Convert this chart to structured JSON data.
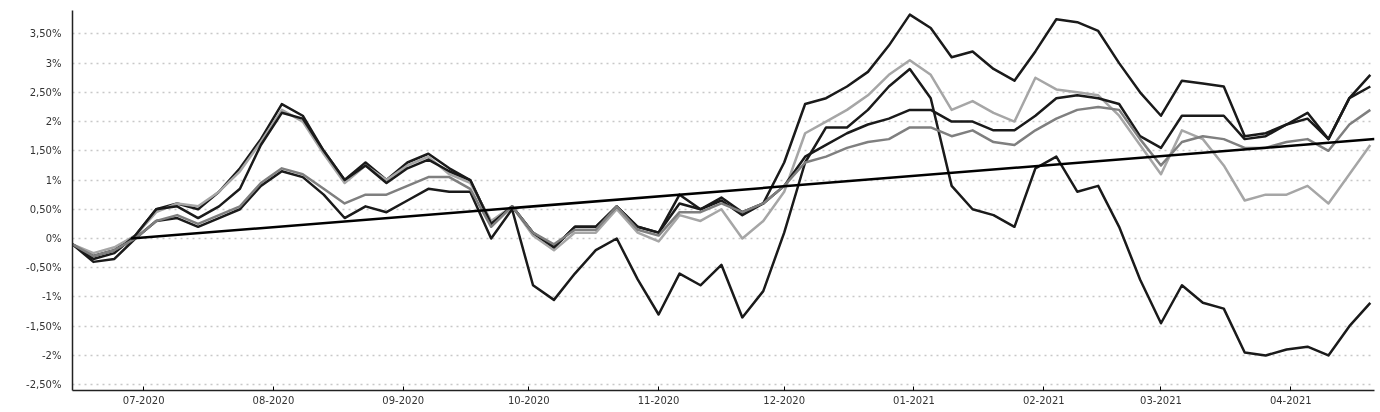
{
  "chart_data": {
    "type": "line",
    "x": [
      "2020-06-14",
      "2020-06-19",
      "2020-06-24",
      "2020-06-29",
      "2020-07-04",
      "2020-07-09",
      "2020-07-14",
      "2020-07-19",
      "2020-07-24",
      "2020-07-29",
      "2020-08-03",
      "2020-08-08",
      "2020-08-13",
      "2020-08-18",
      "2020-08-23",
      "2020-08-28",
      "2020-09-02",
      "2020-09-07",
      "2020-09-12",
      "2020-09-17",
      "2020-09-22",
      "2020-09-27",
      "2020-10-02",
      "2020-10-07",
      "2020-10-12",
      "2020-10-17",
      "2020-10-22",
      "2020-10-27",
      "2020-11-01",
      "2020-11-06",
      "2020-11-11",
      "2020-11-16",
      "2020-11-21",
      "2020-11-26",
      "2020-12-01",
      "2020-12-06",
      "2020-12-11",
      "2020-12-16",
      "2020-12-21",
      "2020-12-26",
      "2020-12-31",
      "2021-01-05",
      "2021-01-10",
      "2021-01-15",
      "2021-01-20",
      "2021-01-25",
      "2021-01-30",
      "2021-02-04",
      "2021-02-09",
      "2021-02-14",
      "2021-02-19",
      "2021-02-24",
      "2021-03-01",
      "2021-03-06",
      "2021-03-11",
      "2021-03-16",
      "2021-03-21",
      "2021-03-26",
      "2021-03-31",
      "2021-04-05",
      "2021-04-10",
      "2021-04-15",
      "2021-04-20"
    ],
    "series": [
      {
        "color": "#1a1a1a",
        "values": [
          -0.1,
          -0.3,
          -0.2,
          0.05,
          0.5,
          0.6,
          0.5,
          0.8,
          1.2,
          1.7,
          2.3,
          2.1,
          1.5,
          1.0,
          1.3,
          1.0,
          1.3,
          1.45,
          1.2,
          1.0,
          0.25,
          0.55,
          0.1,
          -0.15,
          0.2,
          0.2,
          0.55,
          0.2,
          0.1,
          0.75,
          0.5,
          0.7,
          0.45,
          0.6,
          1.3,
          2.3,
          2.4,
          2.6,
          2.85,
          3.3,
          3.83,
          3.6,
          3.1,
          3.2,
          2.9,
          2.7,
          3.2,
          3.75,
          3.7,
          3.55,
          3.0,
          2.5,
          2.1,
          2.7,
          2.65,
          2.6,
          1.75,
          1.8,
          1.95,
          2.15,
          1.7,
          2.4,
          2.8
        ]
      },
      {
        "color": "#1a1a1a",
        "values": [
          -0.1,
          -0.4,
          -0.35,
          0.0,
          0.3,
          0.35,
          0.2,
          0.35,
          0.5,
          0.9,
          1.15,
          1.05,
          0.75,
          0.35,
          0.55,
          0.45,
          0.65,
          0.85,
          0.8,
          0.8,
          0.0,
          0.5,
          -0.8,
          -1.05,
          -0.6,
          -0.2,
          0.0,
          -0.7,
          -1.3,
          -0.6,
          -0.8,
          -0.45,
          -1.35,
          -0.9,
          0.1,
          1.3,
          1.9,
          1.9,
          2.2,
          2.6,
          2.9,
          2.4,
          0.9,
          0.5,
          0.4,
          0.2,
          1.2,
          1.4,
          0.8,
          0.9,
          0.2,
          -0.7,
          -1.45,
          -0.8,
          -1.1,
          -1.2,
          -1.95,
          -2.0,
          -1.9,
          -1.85,
          -2.0,
          -1.5,
          -1.1
        ]
      },
      {
        "color": "#a6a6a6",
        "values": [
          -0.1,
          -0.25,
          -0.15,
          0.05,
          0.45,
          0.6,
          0.55,
          0.8,
          1.15,
          1.65,
          2.2,
          2.0,
          1.45,
          0.95,
          1.25,
          1.0,
          1.25,
          1.4,
          1.1,
          0.95,
          0.3,
          0.55,
          0.05,
          -0.2,
          0.1,
          0.1,
          0.5,
          0.1,
          -0.05,
          0.4,
          0.3,
          0.5,
          0.0,
          0.3,
          0.8,
          1.8,
          2.0,
          2.2,
          2.45,
          2.8,
          3.05,
          2.8,
          2.2,
          2.35,
          2.15,
          2.0,
          2.75,
          2.55,
          2.5,
          2.45,
          2.1,
          1.6,
          1.1,
          1.85,
          1.7,
          1.25,
          0.65,
          0.75,
          0.75,
          0.9,
          0.6,
          1.1,
          1.6
        ]
      },
      {
        "color": "#1a1a1a",
        "values": [
          -0.1,
          -0.35,
          -0.25,
          0.05,
          0.5,
          0.55,
          0.35,
          0.55,
          0.85,
          1.6,
          2.15,
          2.05,
          1.5,
          1.0,
          1.25,
          0.95,
          1.2,
          1.35,
          1.15,
          1.0,
          0.25,
          0.55,
          0.1,
          -0.15,
          0.2,
          0.2,
          0.55,
          0.2,
          0.1,
          0.6,
          0.5,
          0.65,
          0.4,
          0.6,
          0.9,
          1.4,
          1.6,
          1.8,
          1.95,
          2.05,
          2.2,
          2.2,
          2.0,
          2.0,
          1.85,
          1.85,
          2.1,
          2.4,
          2.45,
          2.4,
          2.3,
          1.75,
          1.55,
          2.1,
          2.1,
          2.1,
          1.7,
          1.75,
          1.95,
          2.05,
          1.7,
          2.4,
          2.6
        ]
      },
      {
        "color": "#7f7f7f",
        "values": [
          -0.1,
          -0.3,
          -0.2,
          0.0,
          0.3,
          0.4,
          0.25,
          0.4,
          0.55,
          0.95,
          1.2,
          1.1,
          0.85,
          0.6,
          0.75,
          0.75,
          0.9,
          1.05,
          1.05,
          0.85,
          0.2,
          0.55,
          0.1,
          -0.1,
          0.15,
          0.15,
          0.55,
          0.15,
          0.05,
          0.45,
          0.45,
          0.6,
          0.45,
          0.6,
          0.9,
          1.3,
          1.4,
          1.55,
          1.65,
          1.7,
          1.9,
          1.9,
          1.75,
          1.85,
          1.65,
          1.6,
          1.85,
          2.05,
          2.2,
          2.25,
          2.2,
          1.7,
          1.25,
          1.65,
          1.75,
          1.7,
          1.55,
          1.55,
          1.65,
          1.7,
          1.5,
          1.95,
          2.2
        ]
      },
      {
        "color": "#000000",
        "x": [
          "2020-06-28",
          "2021-04-21"
        ],
        "values": [
          0,
          1.7
        ]
      }
    ],
    "xlim": [
      "2020-06-14",
      "2021-04-21"
    ],
    "xticks": [
      {
        "value": "2020-07-01",
        "label": "07-2020"
      },
      {
        "value": "2020-08-01",
        "label": "08-2020"
      },
      {
        "value": "2020-09-01",
        "label": "09-2020"
      },
      {
        "value": "2020-10-01",
        "label": "10-2020"
      },
      {
        "value": "2020-11-01",
        "label": "11-2020"
      },
      {
        "value": "2020-12-01",
        "label": "12-2020"
      },
      {
        "value": "2021-01-01",
        "label": "01-2021"
      },
      {
        "value": "2021-02-01",
        "label": "02-2021"
      },
      {
        "value": "2021-03-01",
        "label": "03-2021"
      },
      {
        "value": "2021-04-01",
        "label": "04-2021"
      }
    ],
    "ylim": [
      -2.6,
      3.9
    ],
    "yticks": [
      {
        "value": 3.5,
        "label": "3,50%"
      },
      {
        "value": 3,
        "label": "3%"
      },
      {
        "value": 2.5,
        "label": "2,50%"
      },
      {
        "value": 2,
        "label": "2%"
      },
      {
        "value": 1.5,
        "label": "1,50%"
      },
      {
        "value": 1,
        "label": "1%"
      },
      {
        "value": 0.5,
        "label": "0,50%"
      },
      {
        "value": 0,
        "label": "0%"
      },
      {
        "value": -0.5,
        "label": "-0,50%"
      },
      {
        "value": -1,
        "label": "-1%"
      },
      {
        "value": -1.5,
        "label": "-1,50%"
      },
      {
        "value": -2,
        "label": "-2%"
      },
      {
        "value": -2.5,
        "label": "-2,50%"
      }
    ],
    "grid": "y",
    "line_style": "solid"
  }
}
